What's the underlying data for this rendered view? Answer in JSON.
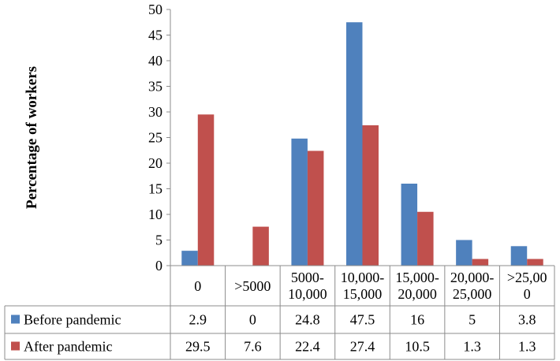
{
  "chart_data": {
    "type": "bar",
    "ylabel": "Percentage of workers",
    "ylim": [
      0,
      50
    ],
    "yticks": [
      0,
      5,
      10,
      15,
      20,
      25,
      30,
      35,
      40,
      45,
      50
    ],
    "category_lines": [
      [
        "0"
      ],
      [
        ">5000"
      ],
      [
        "5000-",
        "10,000"
      ],
      [
        "10,000-",
        "15,000"
      ],
      [
        "15,000-",
        "20,000"
      ],
      [
        "20,000-",
        "25,000"
      ],
      [
        ">25,00",
        "0"
      ]
    ],
    "series": [
      {
        "name": "Before pandemic",
        "color": "#4F81BD",
        "values": [
          2.9,
          0,
          24.8,
          47.5,
          16,
          5,
          3.8
        ],
        "labels": [
          "2.9",
          "0",
          "24.8",
          "47.5",
          "16",
          "5",
          "3.8"
        ]
      },
      {
        "name": "After pandemic",
        "color": "#C0504D",
        "values": [
          29.5,
          7.6,
          22.4,
          27.4,
          10.5,
          1.3,
          1.3
        ],
        "labels": [
          "29.5",
          "7.6",
          "22.4",
          "27.4",
          "10.5",
          "1.3",
          "1.3"
        ]
      }
    ],
    "grid": false,
    "legend": "data table"
  }
}
